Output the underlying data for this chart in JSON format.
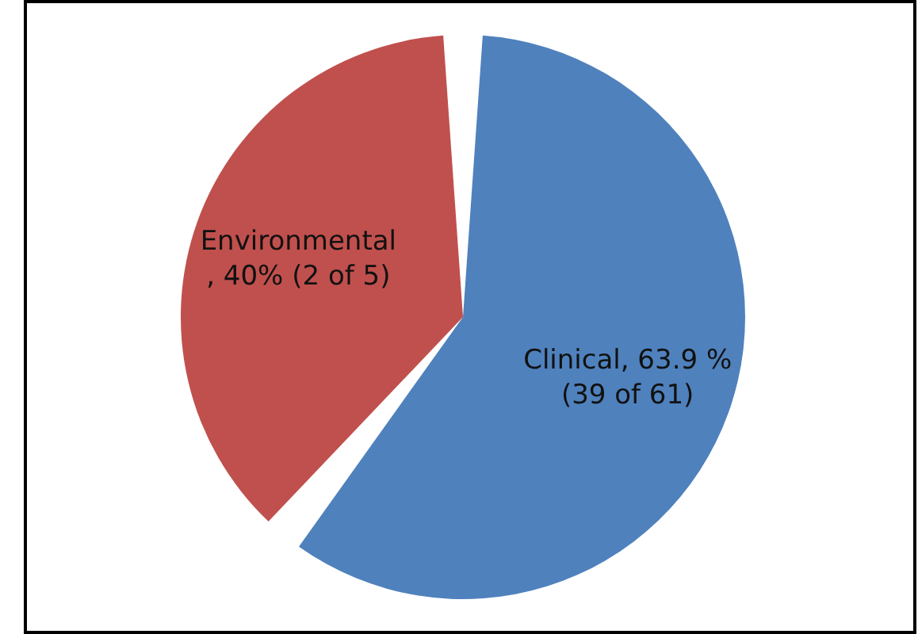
{
  "chart_data": {
    "type": "pie",
    "categories": [
      "Clinical",
      "Environmental"
    ],
    "values": [
      63.9,
      40
    ],
    "colors": [
      "#4f81bd",
      "#c0504d"
    ],
    "value_labels": [
      ", 63.9 %\n(39 of 61)",
      "\n, 40% (2 of 5)"
    ]
  }
}
